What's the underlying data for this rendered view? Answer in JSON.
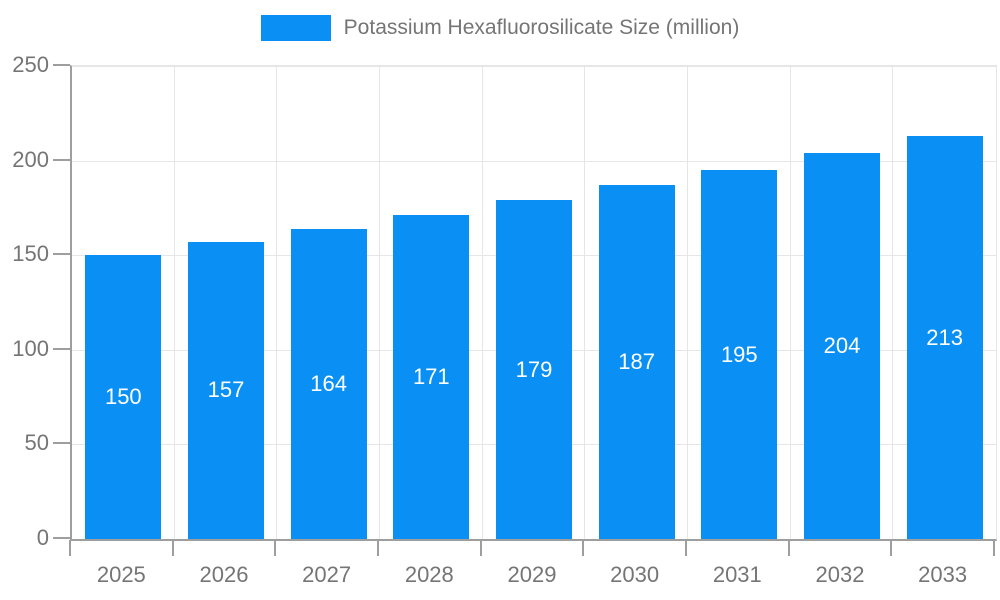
{
  "legend": {
    "label": "Potassium Hexafluorosilicate Size (million)"
  },
  "chart_data": {
    "type": "bar",
    "title": "Potassium Hexafluorosilicate Size (million)",
    "categories": [
      "2025",
      "2026",
      "2027",
      "2028",
      "2029",
      "2030",
      "2031",
      "2032",
      "2033"
    ],
    "values": [
      150,
      157,
      164,
      171,
      179,
      187,
      195,
      204,
      213
    ],
    "series": [
      {
        "name": "Potassium Hexafluorosilicate Size (million)",
        "values": [
          150,
          157,
          164,
          171,
          179,
          187,
          195,
          204,
          213
        ]
      }
    ],
    "xlabel": "",
    "ylabel": "",
    "ylim": [
      0,
      250
    ],
    "y_ticks": [
      0,
      50,
      100,
      150,
      200,
      250
    ],
    "grid": true,
    "legend_position": "top",
    "value_labels": "inside-center"
  },
  "colors": {
    "bar": "#0a90f5",
    "grid": "#e6e6e6",
    "axis": "#9e9e9e",
    "text": "#757575",
    "value_label": "#ffffff",
    "background": "#ffffff"
  }
}
